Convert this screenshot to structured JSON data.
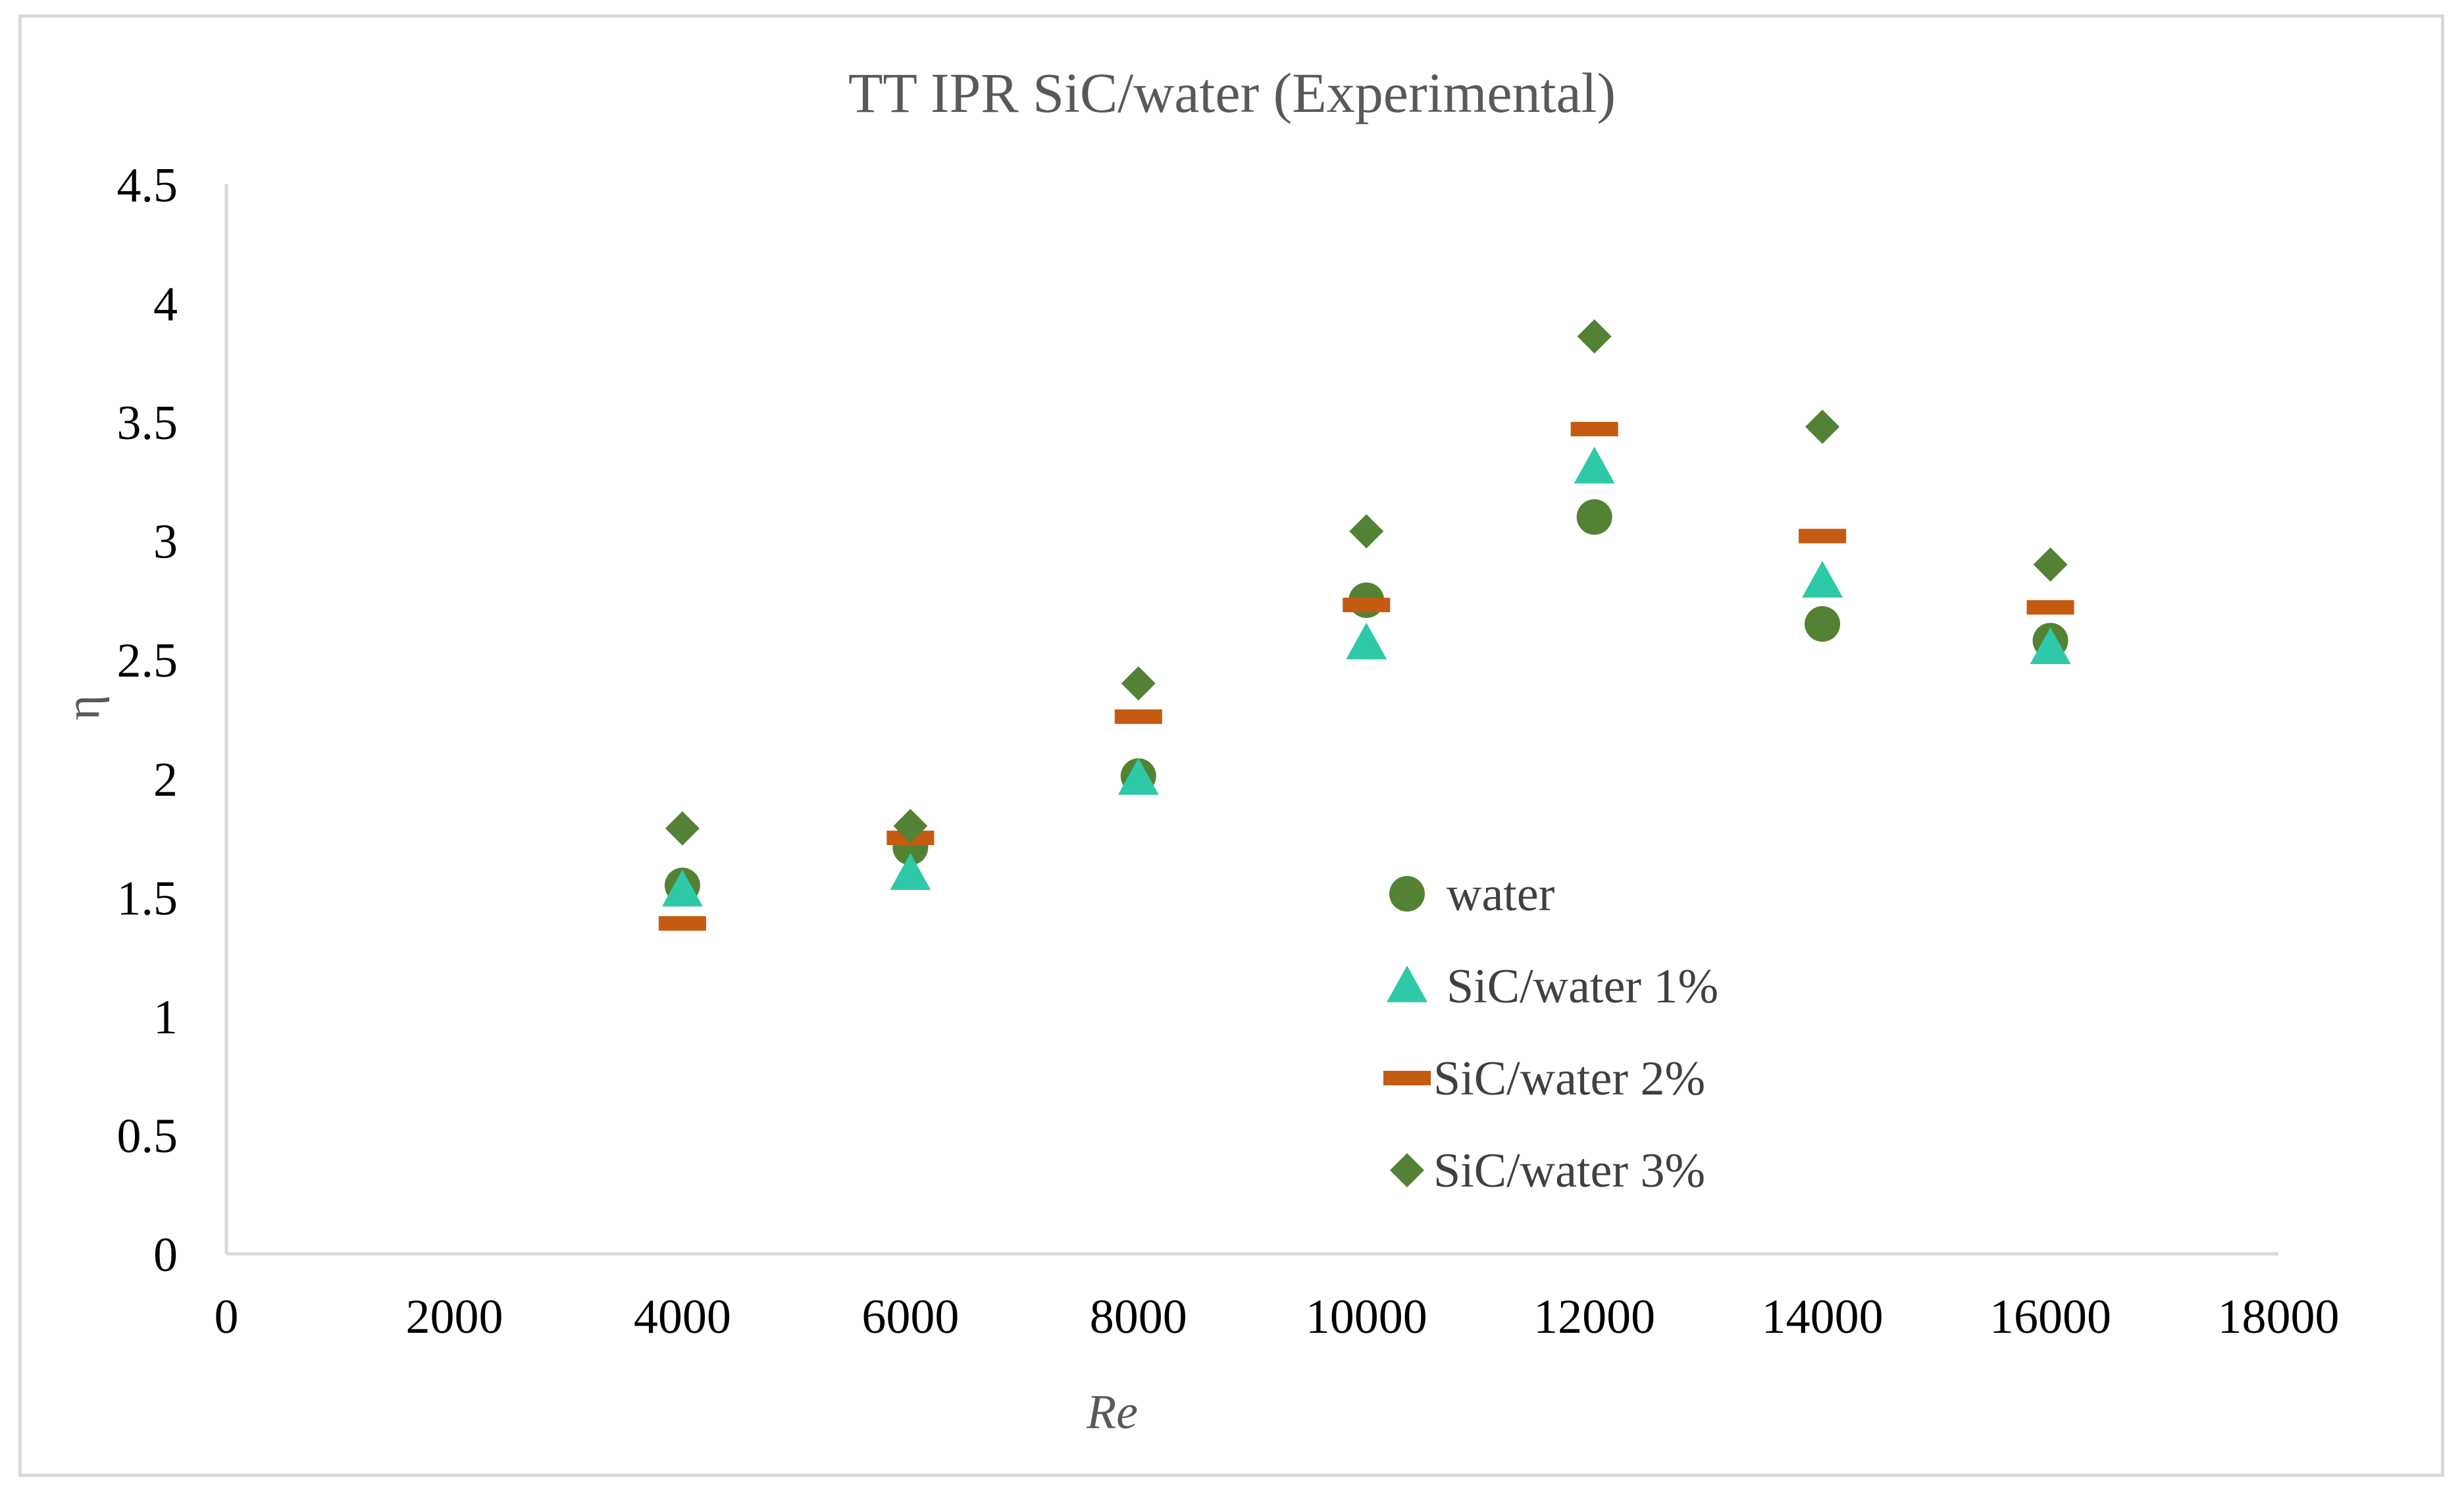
{
  "chart_data": {
    "type": "scatter",
    "title": "TT IPR SiC/water (Experimental)",
    "xlabel": "Re",
    "ylabel": "η",
    "xlim": [
      0,
      18000
    ],
    "ylim": [
      0,
      4.5
    ],
    "xticks": [
      "0",
      "2000",
      "4000",
      "6000",
      "8000",
      "10000",
      "12000",
      "14000",
      "16000",
      "18000"
    ],
    "yticks": [
      "0",
      "0.5",
      "1",
      "1.5",
      "2",
      "2.5",
      "3",
      "3.5",
      "4",
      "4.5"
    ],
    "x": [
      4000,
      6000,
      8000,
      10000,
      12000,
      14000,
      16000
    ],
    "series": [
      {
        "name": "water",
        "marker": "circle",
        "color": "#548235",
        "values": [
          1.55,
          1.71,
          2.01,
          2.75,
          3.1,
          2.65,
          2.58
        ]
      },
      {
        "name": "SiC/water 1%",
        "marker": "triangle",
        "color": "#2ec9a6",
        "values": [
          1.53,
          1.6,
          2.0,
          2.57,
          3.31,
          2.83,
          2.55
        ]
      },
      {
        "name": "SiC/water 2%",
        "marker": "dash",
        "color": "#c55a11",
        "values": [
          1.39,
          1.75,
          2.26,
          2.73,
          3.47,
          3.02,
          2.72
        ]
      },
      {
        "name": "SiC/water 3%",
        "marker": "diamond",
        "color": "#538135",
        "values": [
          1.79,
          1.8,
          2.4,
          3.04,
          3.86,
          3.48,
          2.9
        ]
      }
    ],
    "grid": false,
    "legend": "center-right"
  }
}
